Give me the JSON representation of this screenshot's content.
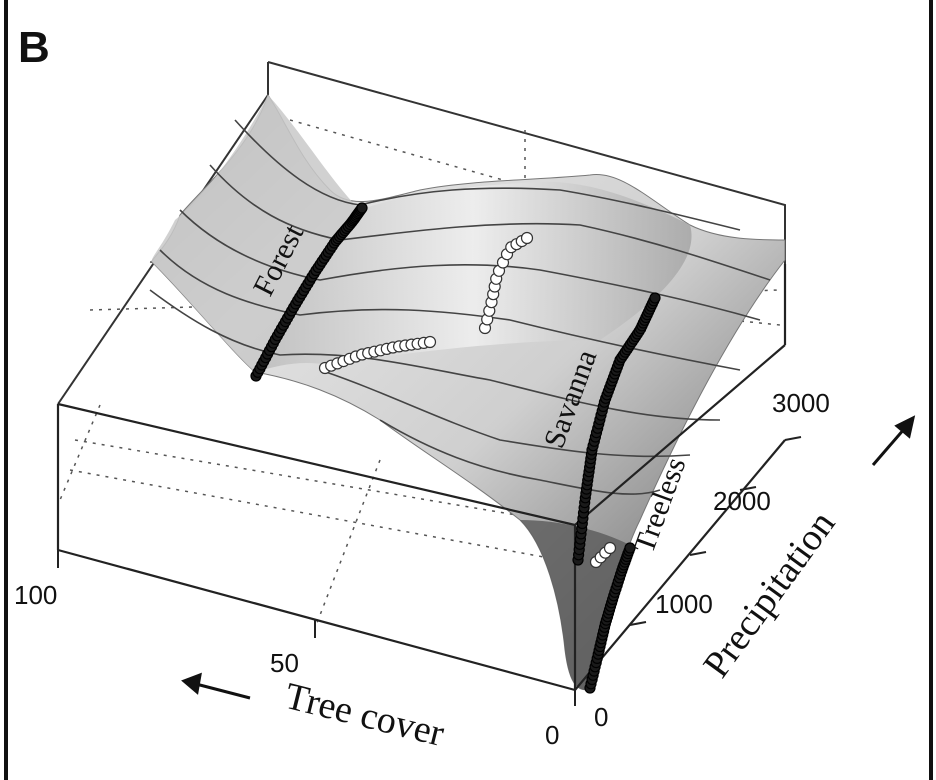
{
  "panel_label": "B",
  "chart_data": {
    "type": "surface3d",
    "x_axis": {
      "label": "Tree cover",
      "ticks": [
        "100",
        "50",
        "0"
      ],
      "range": [
        0,
        100
      ],
      "direction_arrow": "←"
    },
    "y_axis": {
      "label": "Precipitation",
      "ticks": [
        "0",
        "1000",
        "2000",
        "3000"
      ],
      "range": [
        0,
        3500
      ],
      "direction_arrow": "↗"
    },
    "regions": [
      "Forest",
      "Savanna",
      "Treeless"
    ],
    "series": [
      {
        "name": "Forest",
        "marker": "black",
        "points": [
          [
            78,
            1200
          ],
          [
            79,
            1500
          ],
          [
            80,
            1800
          ],
          [
            81,
            2100
          ],
          [
            82,
            2400
          ],
          [
            83,
            2700
          ],
          [
            84,
            3000
          ],
          [
            85,
            3300
          ]
        ]
      },
      {
        "name": "Savanna",
        "marker": "black",
        "points": [
          [
            22,
            1000
          ],
          [
            23,
            1300
          ],
          [
            24,
            1600
          ],
          [
            25,
            1900
          ],
          [
            26,
            2200
          ],
          [
            27,
            2500
          ],
          [
            28,
            2800
          ],
          [
            29,
            3100
          ]
        ]
      },
      {
        "name": "Treeless",
        "marker": "black",
        "points": [
          [
            2,
            0
          ],
          [
            2,
            200
          ],
          [
            2,
            400
          ],
          [
            3,
            600
          ],
          [
            3,
            800
          ],
          [
            3,
            1000
          ],
          [
            4,
            1200
          ]
        ]
      },
      {
        "name": "",
        "marker": "white",
        "points": [
          [
            60,
            1300
          ],
          [
            55,
            1300
          ],
          [
            50,
            1300
          ],
          [
            45,
            1350
          ],
          [
            42,
            1500
          ],
          [
            40,
            1700
          ],
          [
            38,
            1900
          ],
          [
            36,
            2100
          ]
        ]
      },
      {
        "name": "",
        "marker": "white",
        "points": [
          [
            6,
            1050
          ],
          [
            5,
            1100
          ],
          [
            4,
            1150
          ]
        ]
      }
    ],
    "grid": true,
    "surface_shading": "grayscale"
  }
}
